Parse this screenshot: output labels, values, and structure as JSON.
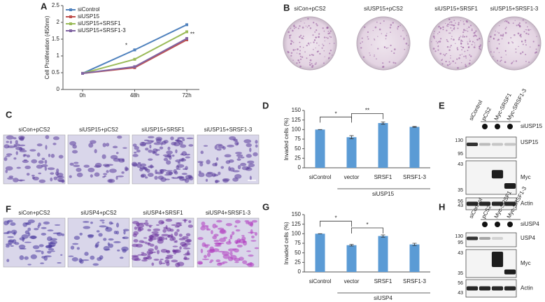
{
  "panel_letters": [
    "A",
    "B",
    "C",
    "D",
    "E",
    "F",
    "G",
    "H"
  ],
  "chart_data": [
    {
      "type": "line",
      "y_label": "Cell Proliferation (450nm)",
      "categories": [
        "0h",
        "48h",
        "72h"
      ],
      "series": [
        {
          "name": "siControl",
          "color": "#4f81bd",
          "values": [
            0.48,
            1.18,
            1.93
          ]
        },
        {
          "name": "siUSP15",
          "color": "#c0504d",
          "values": [
            0.48,
            0.65,
            1.48
          ]
        },
        {
          "name": "siUSP15+SRSF1",
          "color": "#9bbb59",
          "values": [
            0.48,
            0.9,
            1.72
          ]
        },
        {
          "name": "siUSP15+SRSF1-3",
          "color": "#8064a2",
          "values": [
            0.48,
            0.68,
            1.52
          ]
        }
      ],
      "ylim": [
        0,
        2.5
      ],
      "yticks": [
        0,
        0.5,
        1,
        1.5,
        2,
        2.5
      ],
      "annotations": [
        "*",
        "**"
      ],
      "legend": "upper left"
    },
    {
      "type": "bar",
      "y_label": "Invaded cells (%)",
      "categories": [
        "siControl",
        "vector",
        "SRSF1",
        "SRSF1-3"
      ],
      "values": [
        100,
        80,
        117,
        107
      ],
      "errors": [
        0,
        4,
        3,
        1
      ],
      "color": "#5b9bd5",
      "ylim": [
        0,
        150
      ],
      "yticks": [
        0,
        25,
        50,
        75,
        100,
        125,
        150
      ],
      "group_label": "siUSP15",
      "significance": [
        "*",
        "**"
      ]
    },
    {
      "type": "bar",
      "y_label": "Invaded cells (%)",
      "categories": [
        "siControl",
        "vector",
        "SRSF1",
        "SRSF1-3"
      ],
      "values": [
        100,
        70,
        94,
        72
      ],
      "errors": [
        0,
        2,
        3,
        3
      ],
      "color": "#5b9bd5",
      "ylim": [
        0,
        150
      ],
      "yticks": [
        0,
        25,
        50,
        75,
        100,
        125,
        150
      ],
      "group_label": "siUSP4",
      "significance": [
        "*",
        "*"
      ]
    }
  ],
  "dish_labels": [
    "siCon+pCS2",
    "siUSP15+pCS2",
    "siUSP15+SRSF1",
    "siUSP15+SRSF1-3"
  ],
  "micro_c_labels": [
    "siCon+pCS2",
    "siUSP15+pCS2",
    "siUSP15+SRSF1",
    "siUSP15+SRSF1-3"
  ],
  "micro_f_labels": [
    "siCon+pCS2",
    "siUSP4+pCS2",
    "siUSP4+SRSF1",
    "siUSP4+SRSF1-3"
  ],
  "blot_e": {
    "lanes": [
      "siControl",
      "pCS2",
      "Myc-SRSF1",
      "Myc-SRSF1-3"
    ],
    "treatment": "siUSP15",
    "blots": [
      {
        "name": "USP15",
        "markers": [
          130,
          95
        ]
      },
      {
        "name": "Myc",
        "markers": [
          43,
          35
        ]
      },
      {
        "name": "Actin",
        "markers": [
          56,
          43
        ]
      }
    ]
  },
  "blot_h": {
    "lanes": [
      "siControl",
      "pCS2",
      "Myc-SRSF1",
      "Myc-SRSF1-3"
    ],
    "treatment": "siUSP4",
    "blots": [
      {
        "name": "USP4",
        "markers": [
          130,
          95
        ]
      },
      {
        "name": "Myc",
        "markers": [
          43,
          35
        ]
      },
      {
        "name": "Actin",
        "markers": [
          56,
          43
        ]
      }
    ]
  }
}
